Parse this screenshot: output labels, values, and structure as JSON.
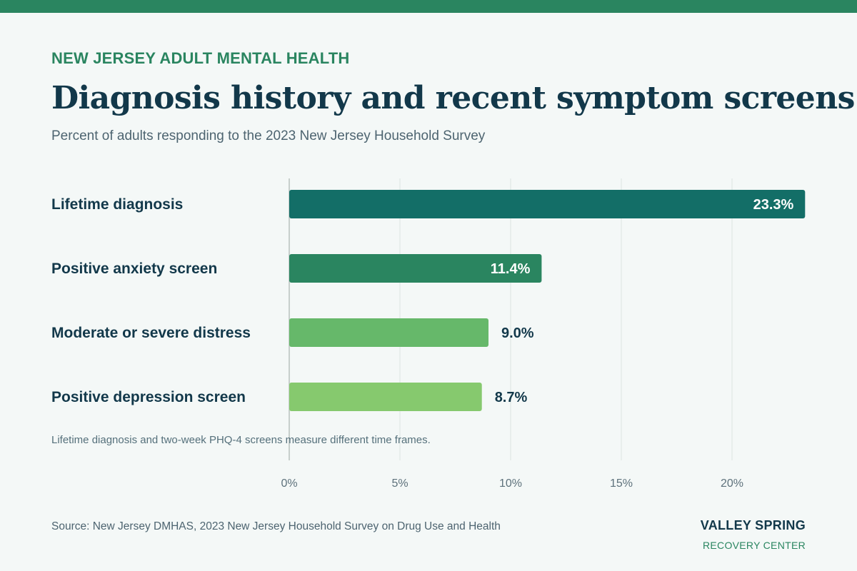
{
  "header": {
    "eyebrow": "NEW JERSEY ADULT MENTAL HEALTH",
    "title": "Diagnosis history and recent symptom screens",
    "subtitle": "Percent of adults responding to the 2023 New Jersey Household Survey"
  },
  "chart_data": {
    "type": "bar",
    "orientation": "horizontal",
    "categories": [
      "Lifetime diagnosis",
      "Positive anxiety screen",
      "Moderate or severe distress",
      "Positive depression screen"
    ],
    "values": [
      23.3,
      11.4,
      9.0,
      8.7
    ],
    "value_labels": [
      "23.3%",
      "11.4%",
      "9.0%",
      "8.7%"
    ],
    "bar_colors": [
      "#136e67",
      "#2a8560",
      "#66b86a",
      "#86c96e"
    ],
    "xlim": [
      0,
      20
    ],
    "x_ticks": [
      0,
      5,
      10,
      15,
      20
    ],
    "x_tick_labels": [
      "0%",
      "5%",
      "10%",
      "15%",
      "20%"
    ],
    "grid": "vertical",
    "title": "Diagnosis history and recent symptom screens",
    "xlabel": "",
    "ylabel": ""
  },
  "notes": {
    "footnote": "Lifetime diagnosis and two-week PHQ-4 screens measure different time frames.",
    "source": "Source: New Jersey DMHAS, 2023 New Jersey Household Survey on Drug Use and Health"
  },
  "brand": {
    "name": "VALLEY SPRING",
    "tagline": "RECOVERY CENTER"
  },
  "colors": {
    "accent": "#2a8560",
    "text_dark": "#12384a",
    "background": "#f4f8f7"
  }
}
